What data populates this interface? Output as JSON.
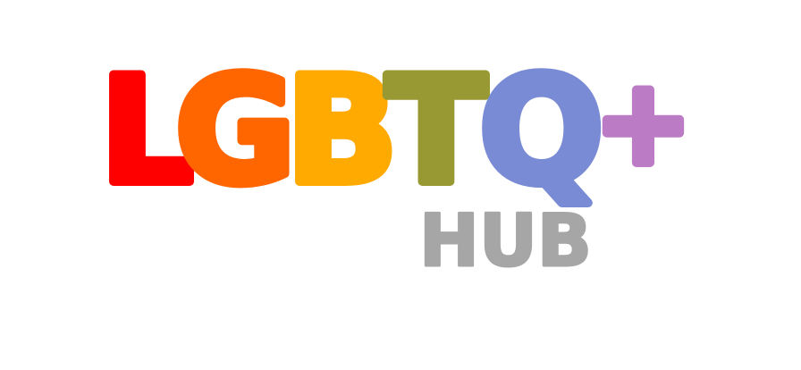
{
  "logo": {
    "letters": [
      {
        "char": "L",
        "color": "#ff0000"
      },
      {
        "char": "G",
        "color": "#ff6600"
      },
      {
        "char": "B",
        "color": "#ffaa00"
      },
      {
        "char": "T",
        "color": "#999933"
      },
      {
        "char": "Q",
        "color": "#7a8bd6"
      },
      {
        "char": "+",
        "color": "#bb7cc5"
      }
    ],
    "subtitle": "HUB",
    "subtitle_color": "#a6a6a6",
    "background": "#ffffff"
  }
}
